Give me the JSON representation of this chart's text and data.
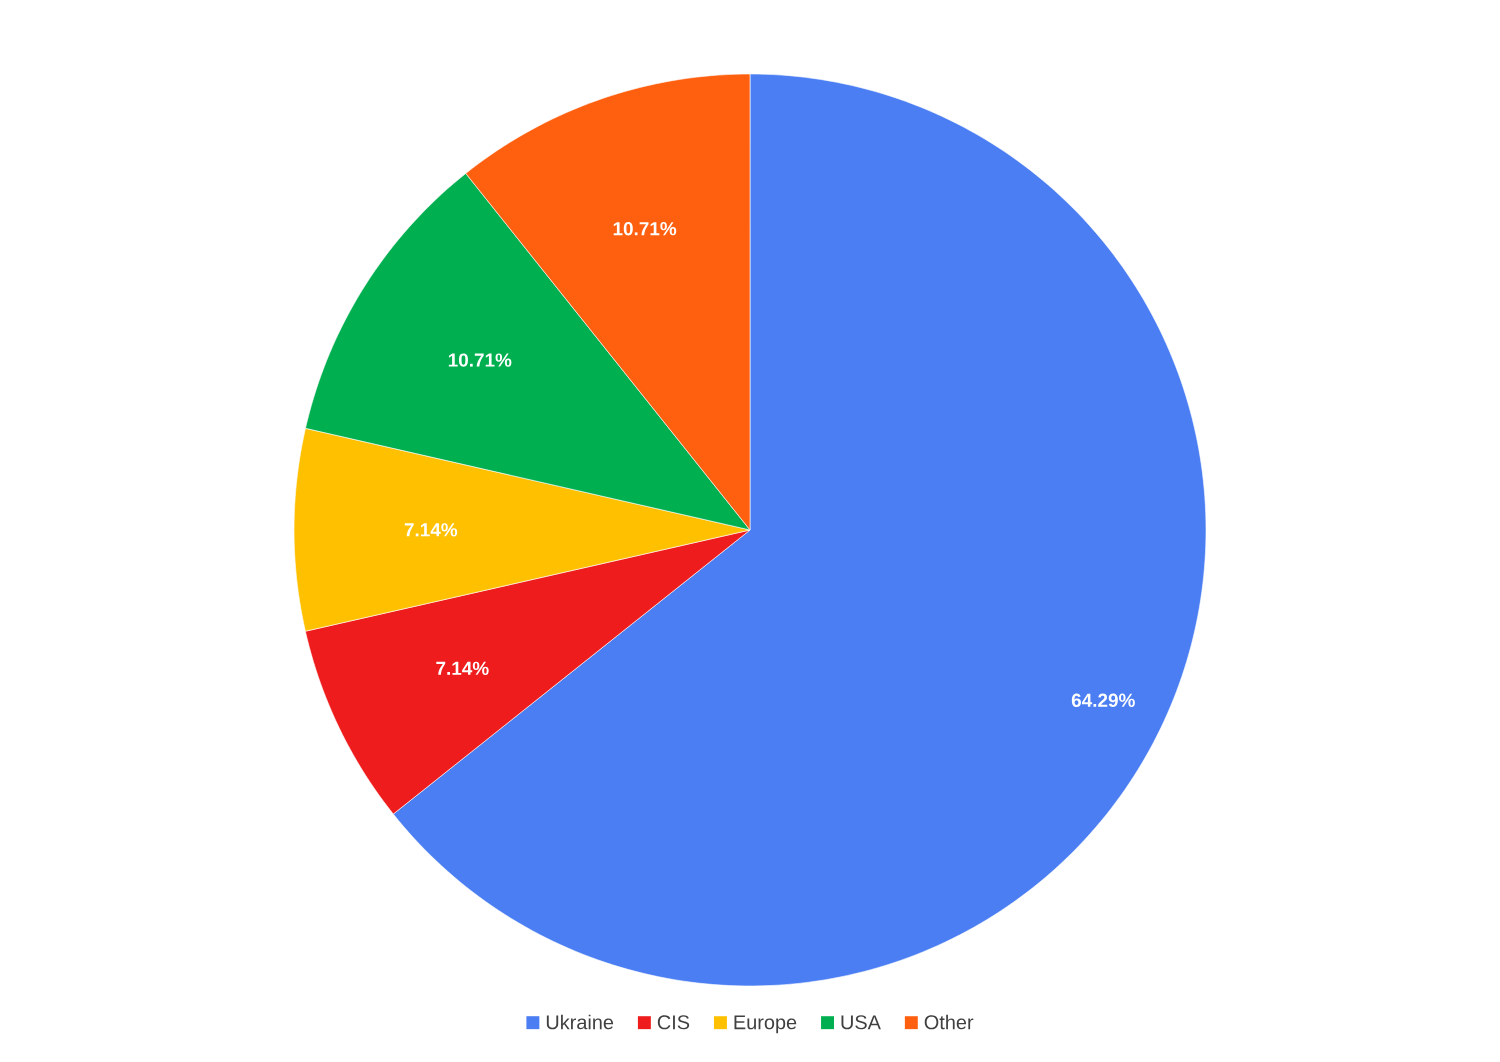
{
  "chart_data": {
    "type": "pie",
    "categories": [
      "Ukraine",
      "CIS",
      "Europe",
      "USA",
      "Other"
    ],
    "values": [
      64.29,
      7.14,
      7.14,
      10.71,
      10.71
    ],
    "colors": [
      "#4a7ef2",
      "#ee1c1c",
      "#ffc000",
      "#00b050",
      "#ff6010"
    ],
    "value_labels": [
      "64.29%",
      "7.14%",
      "7.14%",
      "10.71%",
      "10.71%"
    ],
    "legend": "bottom"
  }
}
